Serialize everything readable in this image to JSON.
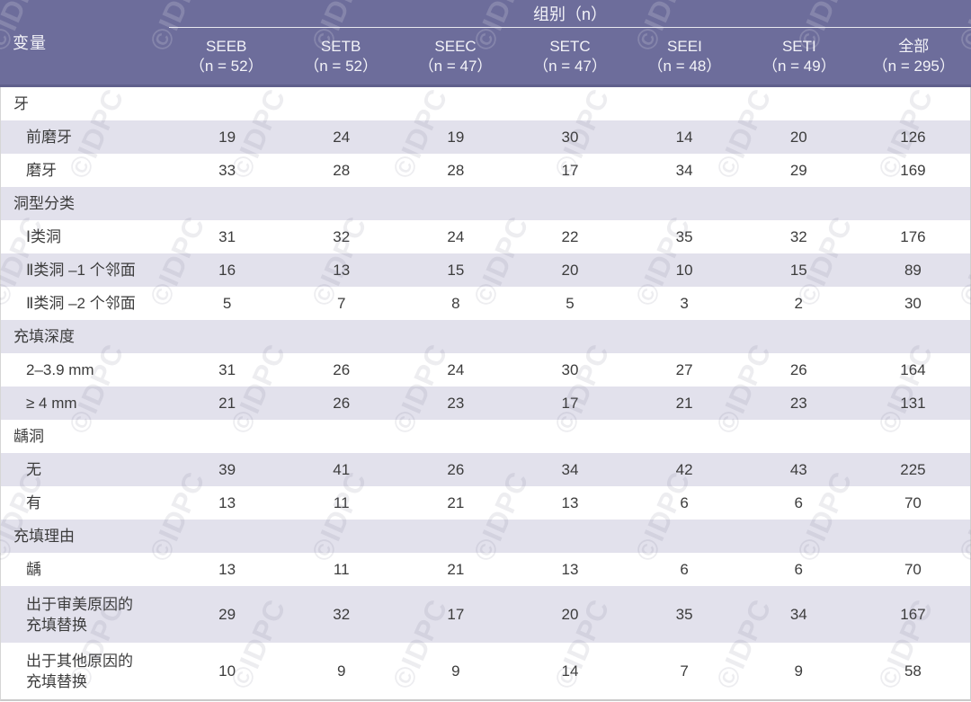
{
  "watermark": {
    "text": "©IDPC"
  },
  "chart_data": {
    "type": "table",
    "variable_label": "变量",
    "group_label": "组别（n）",
    "columns": [
      {
        "name": "SEEB",
        "n": "（n = 52）"
      },
      {
        "name": "SETB",
        "n": "（n = 52）"
      },
      {
        "name": "SEEC",
        "n": "（n = 47）"
      },
      {
        "name": "SETC",
        "n": "（n = 47）"
      },
      {
        "name": "SEEI",
        "n": "（n = 48）"
      },
      {
        "name": "SETI",
        "n": "（n = 49）"
      },
      {
        "name": "全部",
        "n": "（n = 295）"
      }
    ],
    "rows": [
      {
        "type": "section",
        "label": "牙",
        "values": []
      },
      {
        "type": "item",
        "label": "前磨牙",
        "values": [
          "19",
          "24",
          "19",
          "30",
          "14",
          "20",
          "126"
        ]
      },
      {
        "type": "item",
        "label": "磨牙",
        "values": [
          "33",
          "28",
          "28",
          "17",
          "34",
          "29",
          "169"
        ]
      },
      {
        "type": "section",
        "label": "洞型分类",
        "values": []
      },
      {
        "type": "item",
        "label": "Ⅰ类洞",
        "values": [
          "31",
          "32",
          "24",
          "22",
          "35",
          "32",
          "176"
        ]
      },
      {
        "type": "item",
        "label": "Ⅱ类洞 –1 个邻面",
        "values": [
          "16",
          "13",
          "15",
          "20",
          "10",
          "15",
          "89"
        ]
      },
      {
        "type": "item",
        "label": "Ⅱ类洞 –2 个邻面",
        "values": [
          "5",
          "7",
          "8",
          "5",
          "3",
          "2",
          "30"
        ]
      },
      {
        "type": "section",
        "label": "充填深度",
        "values": []
      },
      {
        "type": "item",
        "label": "2–3.9 mm",
        "values": [
          "31",
          "26",
          "24",
          "30",
          "27",
          "26",
          "164"
        ]
      },
      {
        "type": "item",
        "label": "≥ 4 mm",
        "values": [
          "21",
          "26",
          "23",
          "17",
          "21",
          "23",
          "131"
        ]
      },
      {
        "type": "section",
        "label": "龋洞",
        "values": []
      },
      {
        "type": "item",
        "label": "无",
        "values": [
          "39",
          "41",
          "26",
          "34",
          "42",
          "43",
          "225"
        ]
      },
      {
        "type": "item",
        "label": "有",
        "values": [
          "13",
          "11",
          "21",
          "13",
          "6",
          "6",
          "70"
        ]
      },
      {
        "type": "section",
        "label": "充填理由",
        "values": []
      },
      {
        "type": "item",
        "label": "龋",
        "values": [
          "13",
          "11",
          "21",
          "13",
          "6",
          "6",
          "70"
        ]
      },
      {
        "type": "item",
        "label": "出于审美原因的\n充填替换",
        "values": [
          "29",
          "32",
          "17",
          "20",
          "35",
          "34",
          "167"
        ],
        "tall": true
      },
      {
        "type": "item",
        "label": "出于其他原因的\n充填替换",
        "values": [
          "10",
          "9",
          "9",
          "14",
          "7",
          "9",
          "58"
        ],
        "tall": true
      }
    ]
  }
}
